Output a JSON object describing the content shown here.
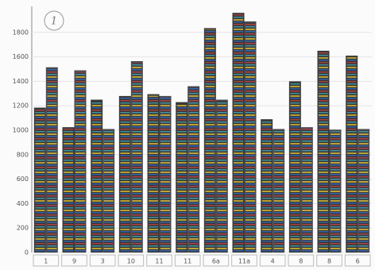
{
  "chart_data": {
    "type": "bar",
    "annotation": "1",
    "categories": [
      "1",
      "9",
      "3",
      "10",
      "11",
      "11",
      "6a",
      "11a",
      "4",
      "8",
      "8",
      "6"
    ],
    "series": [
      {
        "color": "#3a3a3a",
        "values": [
          1185,
          1025,
          1250,
          1280,
          1295,
          1230,
          1835,
          1960,
          1090,
          1400,
          1650,
          1610
        ]
      },
      {
        "color": "#4a4a52",
        "values": [
          1515,
          1490,
          1010,
          1565,
          1280,
          1360,
          1250,
          1890,
          1010,
          1025,
          1005,
          1010
        ]
      }
    ],
    "ylim": [
      0,
      2000
    ],
    "yticks": [
      0,
      200,
      400,
      600,
      800,
      1000,
      1200,
      1400,
      1600,
      1800
    ],
    "grid": true
  }
}
